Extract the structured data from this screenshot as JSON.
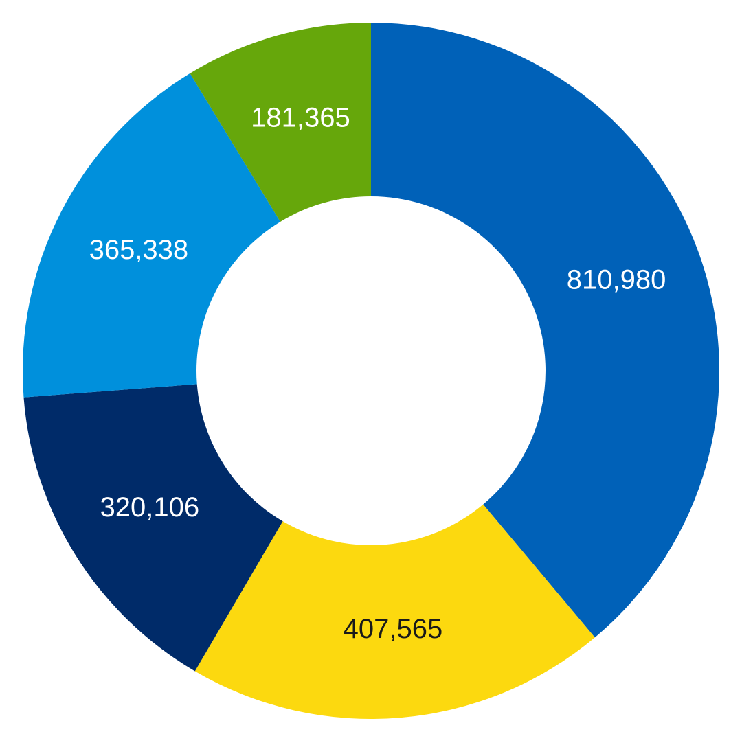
{
  "chart_data": {
    "type": "donut",
    "values": [
      810980,
      407565,
      320106,
      365338,
      181365
    ],
    "value_labels": [
      "810,980",
      "407,565",
      "320,106",
      "365,338",
      "181,365"
    ],
    "colors": [
      "#0061b8",
      "#fcd90f",
      "#002b69",
      "#0090dc",
      "#66a70b"
    ],
    "label_colors": [
      "#ffffff",
      "#1a1a1a",
      "#ffffff",
      "#ffffff",
      "#ffffff"
    ]
  }
}
